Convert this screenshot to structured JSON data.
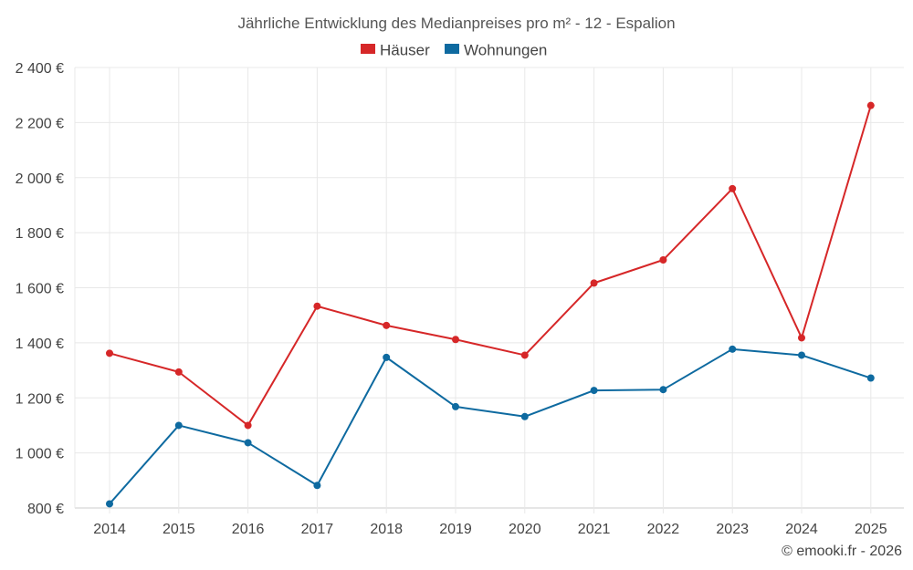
{
  "chart_data": {
    "type": "line",
    "title": "Jährliche Entwicklung des Medianpreises pro m² - 12 - Espalion",
    "categories": [
      "2014",
      "2015",
      "2016",
      "2017",
      "2018",
      "2019",
      "2020",
      "2021",
      "2022",
      "2023",
      "2024",
      "2025"
    ],
    "series": [
      {
        "name": "Häuser",
        "color": "#d62728",
        "values": [
          1362,
          1294,
          1100,
          1533,
          1463,
          1412,
          1355,
          1617,
          1701,
          1960,
          1418,
          2262
        ]
      },
      {
        "name": "Wohnungen",
        "color": "#0e6aa0",
        "values": [
          815,
          1100,
          1037,
          882,
          1347,
          1168,
          1132,
          1227,
          1230,
          1377,
          1355,
          1272
        ]
      }
    ],
    "ylim": [
      800,
      2400
    ],
    "yticks": [
      800,
      1000,
      1200,
      1400,
      1600,
      1800,
      2000,
      2200,
      2400
    ],
    "ytick_labels": [
      "800 €",
      "1 000 €",
      "1 200 €",
      "1 400 €",
      "1 600 €",
      "1 800 €",
      "2 000 €",
      "2 200 €",
      "2 400 €"
    ],
    "xlabel": "",
    "ylabel": "",
    "grid": true,
    "legend": "top-center"
  },
  "footer": {
    "copyright": "© emooki.fr - 2026"
  }
}
